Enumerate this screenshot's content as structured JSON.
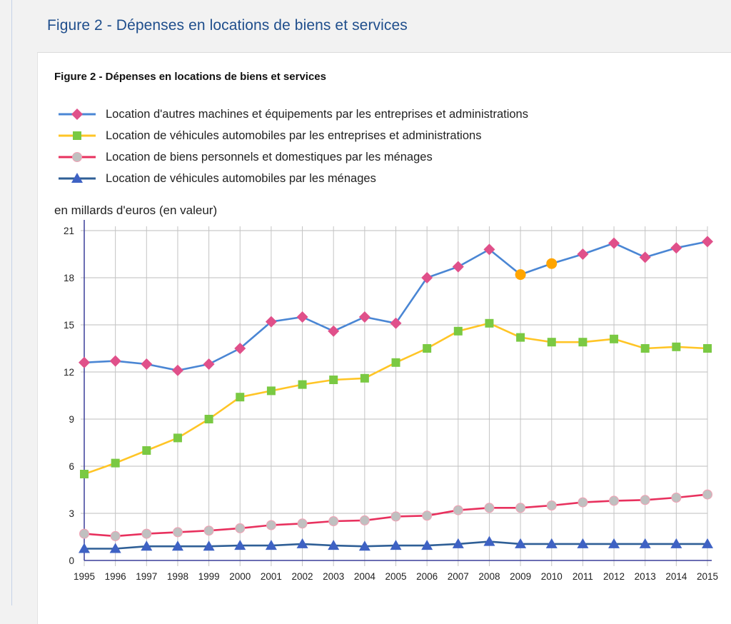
{
  "page": {
    "title": "Figure 2 - Dépenses en locations de biens et services"
  },
  "chart_data": {
    "type": "line",
    "title": "Figure 2 - Dépenses en locations de biens et services",
    "ylabel": "en millards d'euros (en valeur)",
    "xlabel": "",
    "ylim": [
      0,
      21
    ],
    "yticks": [
      0,
      3,
      6,
      9,
      12,
      15,
      18,
      21
    ],
    "grid": true,
    "legend_position": "top-left",
    "categories": [
      "1995",
      "1996",
      "1997",
      "1998",
      "1999",
      "2000",
      "2001",
      "2002",
      "2003",
      "2004",
      "2005",
      "2006",
      "2007",
      "2008",
      "2009",
      "2010",
      "2011",
      "2012",
      "2013",
      "2014",
      "2015"
    ],
    "series": [
      {
        "name": "Location d'autres machines et équipements par les entreprises et administrations",
        "line_color": "#4a86d4",
        "marker": "diamond",
        "marker_color": "#e0508a",
        "highlight_color": "#ffa500",
        "highlighted_points": [
          "2009",
          "2010"
        ],
        "values": [
          12.6,
          12.7,
          12.5,
          12.1,
          12.5,
          13.5,
          15.2,
          15.5,
          14.6,
          15.5,
          15.1,
          18.0,
          18.7,
          19.8,
          18.2,
          18.9,
          19.5,
          20.2,
          19.3,
          19.9,
          20.3
        ]
      },
      {
        "name": "Location de véhicules automobiles par les entreprises et administrations",
        "line_color": "#ffc526",
        "marker": "square",
        "marker_color": "#7ac943",
        "values": [
          5.5,
          6.2,
          7.0,
          7.8,
          9.0,
          10.4,
          10.8,
          11.2,
          11.5,
          11.6,
          12.6,
          13.5,
          14.6,
          15.1,
          14.2,
          13.9,
          13.9,
          14.1,
          13.5,
          13.6,
          13.5
        ]
      },
      {
        "name": "Location de biens personnels et domestiques par les ménages",
        "line_color": "#e8315e",
        "marker": "circle",
        "marker_color": "#c0c0c0",
        "values": [
          1.7,
          1.55,
          1.7,
          1.8,
          1.9,
          2.05,
          2.25,
          2.35,
          2.5,
          2.55,
          2.8,
          2.85,
          3.2,
          3.35,
          3.35,
          3.5,
          3.7,
          3.8,
          3.85,
          4.0,
          4.2
        ]
      },
      {
        "name": "Location de véhicules automobiles par les ménages",
        "line_color": "#2f5f96",
        "marker": "triangle",
        "marker_color": "#3e62c4",
        "values": [
          0.75,
          0.75,
          0.9,
          0.9,
          0.9,
          0.95,
          0.95,
          1.05,
          0.95,
          0.9,
          0.95,
          0.95,
          1.05,
          1.2,
          1.05,
          1.05,
          1.05,
          1.05,
          1.05,
          1.05,
          1.05
        ]
      }
    ]
  }
}
